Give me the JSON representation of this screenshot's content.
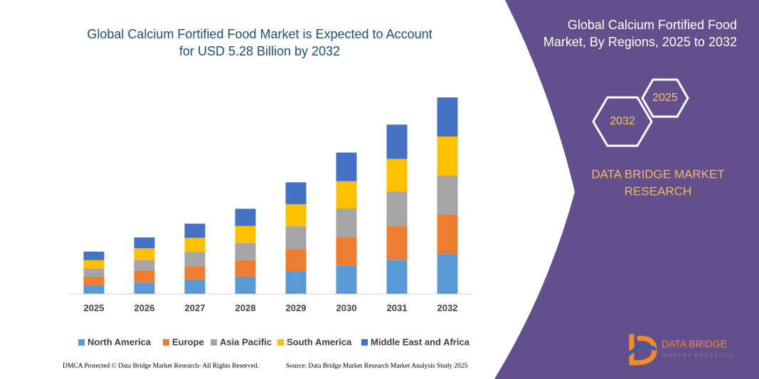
{
  "chart_data": {
    "type": "bar",
    "stacked": true,
    "title": [
      "Global Calcium Fortified Food Market is Expected to Account",
      "for USD 5.28 Billion by 2032"
    ],
    "categories": [
      "2025",
      "2026",
      "2027",
      "2028",
      "2029",
      "2030",
      "2031",
      "2032"
    ],
    "series": [
      {
        "name": "North America",
        "color": "#5b9bd5",
        "values": [
          0.23,
          0.31,
          0.38,
          0.46,
          0.61,
          0.75,
          0.9,
          1.05
        ]
      },
      {
        "name": "Europe",
        "color": "#ed7d31",
        "values": [
          0.23,
          0.31,
          0.36,
          0.44,
          0.59,
          0.77,
          0.92,
          1.07
        ]
      },
      {
        "name": "Asia Pacific",
        "color": "#a5a5a5",
        "values": [
          0.21,
          0.29,
          0.38,
          0.46,
          0.61,
          0.77,
          0.92,
          1.05
        ]
      },
      {
        "name": "South America",
        "color": "#ffc000",
        "values": [
          0.23,
          0.31,
          0.38,
          0.46,
          0.59,
          0.73,
          0.88,
          1.05
        ]
      },
      {
        "name": "Middle East and Africa",
        "color": "#4472c4",
        "values": [
          0.23,
          0.29,
          0.38,
          0.46,
          0.59,
          0.77,
          0.92,
          1.05
        ]
      }
    ]
  },
  "panel": {
    "title": [
      "Global Calcium Fortified Food",
      "Market, By Regions, 2025 to 2032"
    ],
    "hex_labels": [
      "2025",
      "2032"
    ],
    "brand": [
      "DATA BRIDGE MARKET",
      "RESEARCH"
    ],
    "logo": [
      "DATA BRIDGE",
      "MARKET RESEARCH"
    ]
  },
  "footer": {
    "left": "DMCA Protected © Data Bridge Market Research- All Rights Reserved.",
    "right": "Source: Data Bridge Market Research Market Analysis Study 2025"
  }
}
